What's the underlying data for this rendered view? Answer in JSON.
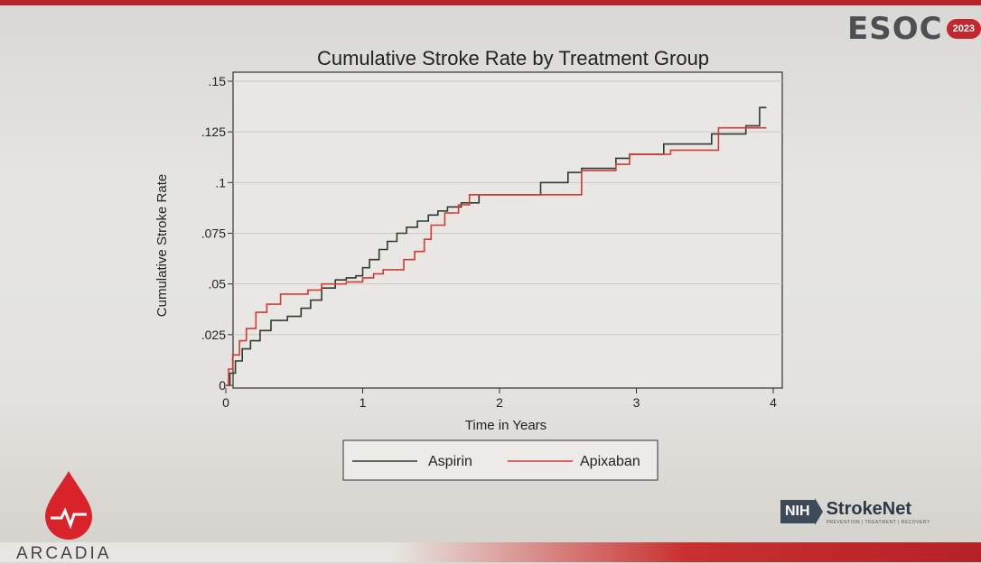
{
  "branding": {
    "conference": "ESOC",
    "conference_year": "2023",
    "logo_left": "ARCADIA",
    "logo_right_abbr": "NIH",
    "logo_right_name": "StrokeNet",
    "logo_right_tagline": "PREVENTION | TREATMENT | RECOVERY",
    "accent_color": "#b3242b"
  },
  "chart_data": {
    "type": "line",
    "title": "Cumulative Stroke Rate by Treatment Group",
    "xlabel": "Time in Years",
    "ylabel": "Cumulative Stroke Rate",
    "xlim": [
      0,
      4
    ],
    "ylim": [
      0,
      0.15
    ],
    "x_ticks": [
      0,
      1,
      2,
      3,
      4
    ],
    "x_tick_labels": [
      "0",
      "1",
      "2",
      "3",
      "4"
    ],
    "y_ticks": [
      0,
      0.025,
      0.05,
      0.075,
      0.1,
      0.125,
      0.15
    ],
    "y_tick_labels": [
      "0",
      ".025",
      ".05",
      ".075",
      ".1",
      ".125",
      ".15"
    ],
    "grid": true,
    "legend_position": "bottom",
    "step": true,
    "series": [
      {
        "name": "Aspirin",
        "color": "#2f3a2f",
        "x": [
          0,
          0.03,
          0.07,
          0.12,
          0.18,
          0.25,
          0.33,
          0.45,
          0.55,
          0.62,
          0.7,
          0.8,
          0.88,
          0.95,
          1.0,
          1.05,
          1.12,
          1.18,
          1.25,
          1.32,
          1.4,
          1.48,
          1.55,
          1.62,
          1.72,
          1.85,
          2.3,
          2.5,
          2.6,
          2.85,
          2.95,
          3.2,
          3.55,
          3.8,
          3.9,
          3.95
        ],
        "y": [
          0,
          0.006,
          0.012,
          0.018,
          0.022,
          0.027,
          0.032,
          0.034,
          0.038,
          0.042,
          0.048,
          0.052,
          0.053,
          0.054,
          0.058,
          0.062,
          0.067,
          0.071,
          0.075,
          0.078,
          0.081,
          0.084,
          0.086,
          0.088,
          0.09,
          0.094,
          0.1,
          0.105,
          0.107,
          0.112,
          0.114,
          0.119,
          0.124,
          0.128,
          0.137,
          0.137
        ]
      },
      {
        "name": "Apixaban",
        "color": "#d13b34",
        "x": [
          0,
          0.02,
          0.05,
          0.1,
          0.15,
          0.22,
          0.3,
          0.4,
          0.6,
          0.7,
          0.88,
          1.0,
          1.08,
          1.15,
          1.3,
          1.38,
          1.45,
          1.5,
          1.6,
          1.7,
          1.78,
          2.55,
          2.6,
          2.85,
          2.95,
          3.25,
          3.6,
          3.95
        ],
        "y": [
          0,
          0.008,
          0.015,
          0.022,
          0.028,
          0.036,
          0.04,
          0.045,
          0.047,
          0.05,
          0.051,
          0.053,
          0.055,
          0.057,
          0.062,
          0.066,
          0.072,
          0.079,
          0.085,
          0.089,
          0.094,
          0.094,
          0.106,
          0.109,
          0.114,
          0.116,
          0.127,
          0.127
        ]
      }
    ]
  }
}
